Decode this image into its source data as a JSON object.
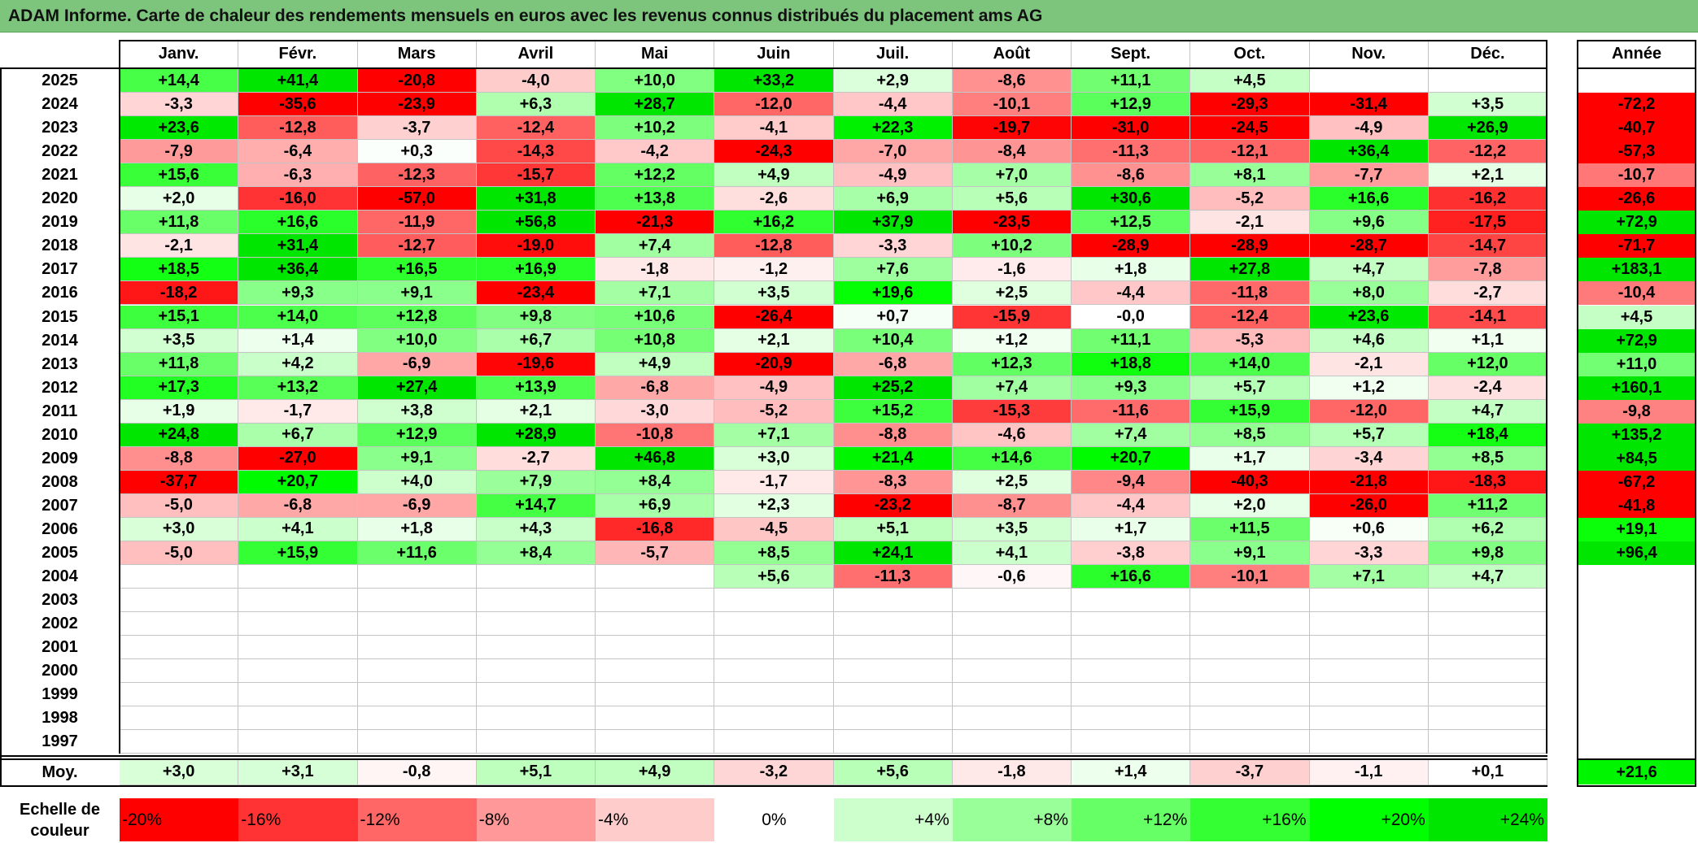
{
  "title": "ADAM Informe. Carte de chaleur des rendements mensuels en euros avec les revenus connus distribués du placement ams AG",
  "chart_data": {
    "type": "heatmap",
    "title": "ADAM Informe. Carte de chaleur des rendements mensuels en euros avec les revenus connus distribués du placement ams AG",
    "months": [
      "Janv.",
      "Févr.",
      "Mars",
      "Avril",
      "Mai",
      "Juin",
      "Juil.",
      "Août",
      "Sept.",
      "Oct.",
      "Nov.",
      "Déc."
    ],
    "year_header": "Année",
    "rows": [
      {
        "year": "2025",
        "values": [
          "+14,4",
          "+41,4",
          "-20,8",
          "-4,0",
          "+10,0",
          "+33,2",
          "+2,9",
          "-8,6",
          "+11,1",
          "+4,5",
          "",
          ""
        ],
        "annual": ""
      },
      {
        "year": "2024",
        "values": [
          "-3,3",
          "-35,6",
          "-23,9",
          "+6,3",
          "+28,7",
          "-12,0",
          "-4,4",
          "-10,1",
          "+12,9",
          "-29,3",
          "-31,4",
          "+3,5"
        ],
        "annual": "-72,2"
      },
      {
        "year": "2023",
        "values": [
          "+23,6",
          "-12,8",
          "-3,7",
          "-12,4",
          "+10,2",
          "-4,1",
          "+22,3",
          "-19,7",
          "-31,0",
          "-24,5",
          "-4,9",
          "+26,9"
        ],
        "annual": "-40,7"
      },
      {
        "year": "2022",
        "values": [
          "-7,9",
          "-6,4",
          "+0,3",
          "-14,3",
          "-4,2",
          "-24,3",
          "-7,0",
          "-8,4",
          "-11,3",
          "-12,1",
          "+36,4",
          "-12,2"
        ],
        "annual": "-57,3"
      },
      {
        "year": "2021",
        "values": [
          "+15,6",
          "-6,3",
          "-12,3",
          "-15,7",
          "+12,2",
          "+4,9",
          "-4,9",
          "+7,0",
          "-8,6",
          "+8,1",
          "-7,7",
          "+2,1"
        ],
        "annual": "-10,7"
      },
      {
        "year": "2020",
        "values": [
          "+2,0",
          "-16,0",
          "-57,0",
          "+31,8",
          "+13,8",
          "-2,6",
          "+6,9",
          "+5,6",
          "+30,6",
          "-5,2",
          "+16,6",
          "-16,2"
        ],
        "annual": "-26,6"
      },
      {
        "year": "2019",
        "values": [
          "+11,8",
          "+16,6",
          "-11,9",
          "+56,8",
          "-21,3",
          "+16,2",
          "+37,9",
          "-23,5",
          "+12,5",
          "-2,1",
          "+9,6",
          "-17,5"
        ],
        "annual": "+72,9"
      },
      {
        "year": "2018",
        "values": [
          "-2,1",
          "+31,4",
          "-12,7",
          "-19,0",
          "+7,4",
          "-12,8",
          "-3,3",
          "+10,2",
          "-28,9",
          "-28,9",
          "-28,7",
          "-14,7"
        ],
        "annual": "-71,7"
      },
      {
        "year": "2017",
        "values": [
          "+18,5",
          "+36,4",
          "+16,5",
          "+16,9",
          "-1,8",
          "-1,2",
          "+7,6",
          "-1,6",
          "+1,8",
          "+27,8",
          "+4,7",
          "-7,8"
        ],
        "annual": "+183,1"
      },
      {
        "year": "2016",
        "values": [
          "-18,2",
          "+9,3",
          "+9,1",
          "-23,4",
          "+7,1",
          "+3,5",
          "+19,6",
          "+2,5",
          "-4,4",
          "-11,8",
          "+8,0",
          "-2,7"
        ],
        "annual": "-10,4"
      },
      {
        "year": "2015",
        "values": [
          "+15,1",
          "+14,0",
          "+12,8",
          "+9,8",
          "+10,6",
          "-26,4",
          "+0,7",
          "-15,9",
          "-0,0",
          "-12,4",
          "+23,6",
          "-14,1"
        ],
        "annual": "+4,5"
      },
      {
        "year": "2014",
        "values": [
          "+3,5",
          "+1,4",
          "+10,0",
          "+6,7",
          "+10,8",
          "+2,1",
          "+10,4",
          "+1,2",
          "+11,1",
          "-5,3",
          "+4,6",
          "+1,1"
        ],
        "annual": "+72,9"
      },
      {
        "year": "2013",
        "values": [
          "+11,8",
          "+4,2",
          "-6,9",
          "-19,6",
          "+4,9",
          "-20,9",
          "-6,8",
          "+12,3",
          "+18,8",
          "+14,0",
          "-2,1",
          "+12,0"
        ],
        "annual": "+11,0"
      },
      {
        "year": "2012",
        "values": [
          "+17,3",
          "+13,2",
          "+27,4",
          "+13,9",
          "-6,8",
          "-4,9",
          "+25,2",
          "+7,4",
          "+9,3",
          "+5,7",
          "+1,2",
          "-2,4"
        ],
        "annual": "+160,1"
      },
      {
        "year": "2011",
        "values": [
          "+1,9",
          "-1,7",
          "+3,8",
          "+2,1",
          "-3,0",
          "-5,2",
          "+15,2",
          "-15,3",
          "-11,6",
          "+15,9",
          "-12,0",
          "+4,7"
        ],
        "annual": "-9,8"
      },
      {
        "year": "2010",
        "values": [
          "+24,8",
          "+6,7",
          "+12,9",
          "+28,9",
          "-10,8",
          "+7,1",
          "-8,8",
          "-4,6",
          "+7,4",
          "+8,5",
          "+5,7",
          "+18,4"
        ],
        "annual": "+135,2"
      },
      {
        "year": "2009",
        "values": [
          "-8,8",
          "-27,0",
          "+9,1",
          "-2,7",
          "+46,8",
          "+3,0",
          "+21,4",
          "+14,6",
          "+20,7",
          "+1,7",
          "-3,4",
          "+8,5"
        ],
        "annual": "+84,5"
      },
      {
        "year": "2008",
        "values": [
          "-37,7",
          "+20,7",
          "+4,0",
          "+7,9",
          "+8,4",
          "-1,7",
          "-8,3",
          "+2,5",
          "-9,4",
          "-40,3",
          "-21,8",
          "-18,3"
        ],
        "annual": "-67,2"
      },
      {
        "year": "2007",
        "values": [
          "-5,0",
          "-6,8",
          "-6,9",
          "+14,7",
          "+6,9",
          "+2,3",
          "-23,2",
          "-8,7",
          "-4,4",
          "+2,0",
          "-26,0",
          "+11,2"
        ],
        "annual": "-41,8"
      },
      {
        "year": "2006",
        "values": [
          "+3,0",
          "+4,1",
          "+1,8",
          "+4,3",
          "-16,8",
          "-4,5",
          "+5,1",
          "+3,5",
          "+1,7",
          "+11,5",
          "+0,6",
          "+6,2"
        ],
        "annual": "+19,1"
      },
      {
        "year": "2005",
        "values": [
          "-5,0",
          "+15,9",
          "+11,6",
          "+8,4",
          "-5,7",
          "+8,5",
          "+24,1",
          "+4,1",
          "-3,8",
          "+9,1",
          "-3,3",
          "+9,8"
        ],
        "annual": "+96,4"
      },
      {
        "year": "2004",
        "values": [
          "",
          "",
          "",
          "",
          "",
          "+5,6",
          "-11,3",
          "-0,6",
          "+16,6",
          "-10,1",
          "+7,1",
          "+4,7"
        ],
        "annual": ""
      },
      {
        "year": "2003",
        "values": [
          "",
          "",
          "",
          "",
          "",
          "",
          "",
          "",
          "",
          "",
          "",
          ""
        ],
        "annual": ""
      },
      {
        "year": "2002",
        "values": [
          "",
          "",
          "",
          "",
          "",
          "",
          "",
          "",
          "",
          "",
          "",
          ""
        ],
        "annual": ""
      },
      {
        "year": "2001",
        "values": [
          "",
          "",
          "",
          "",
          "",
          "",
          "",
          "",
          "",
          "",
          "",
          ""
        ],
        "annual": ""
      },
      {
        "year": "2000",
        "values": [
          "",
          "",
          "",
          "",
          "",
          "",
          "",
          "",
          "",
          "",
          "",
          ""
        ],
        "annual": ""
      },
      {
        "year": "1999",
        "values": [
          "",
          "",
          "",
          "",
          "",
          "",
          "",
          "",
          "",
          "",
          "",
          ""
        ],
        "annual": ""
      },
      {
        "year": "1998",
        "values": [
          "",
          "",
          "",
          "",
          "",
          "",
          "",
          "",
          "",
          "",
          "",
          ""
        ],
        "annual": ""
      },
      {
        "year": "1997",
        "values": [
          "",
          "",
          "",
          "",
          "",
          "",
          "",
          "",
          "",
          "",
          "",
          ""
        ],
        "annual": ""
      }
    ],
    "average": {
      "label": "Moy.",
      "values": [
        "+3,0",
        "+3,1",
        "-0,8",
        "+5,1",
        "+4,9",
        "-3,2",
        "+5,6",
        "-1,8",
        "+1,4",
        "-3,7",
        "-1,1",
        "+0,1"
      ],
      "annual": "+21,6"
    },
    "color_scale": {
      "label_line1": "Echelle de",
      "label_line2": "couleur",
      "steps": [
        "-20%",
        "-16%",
        "-12%",
        "-8%",
        "-4%",
        "0%",
        "+4%",
        "+8%",
        "+12%",
        "+16%",
        "+20%",
        "+24%"
      ],
      "stops": [
        -20,
        -16,
        -12,
        -8,
        -4,
        0,
        4,
        8,
        12,
        16,
        20,
        24
      ],
      "colors": [
        "#ff0000",
        "#ff3333",
        "#ff6666",
        "#ff9999",
        "#ffcccc",
        "#ffffff",
        "#ccffcc",
        "#99ff99",
        "#66ff66",
        "#33ff33",
        "#00ff00",
        "#00e600"
      ]
    }
  }
}
